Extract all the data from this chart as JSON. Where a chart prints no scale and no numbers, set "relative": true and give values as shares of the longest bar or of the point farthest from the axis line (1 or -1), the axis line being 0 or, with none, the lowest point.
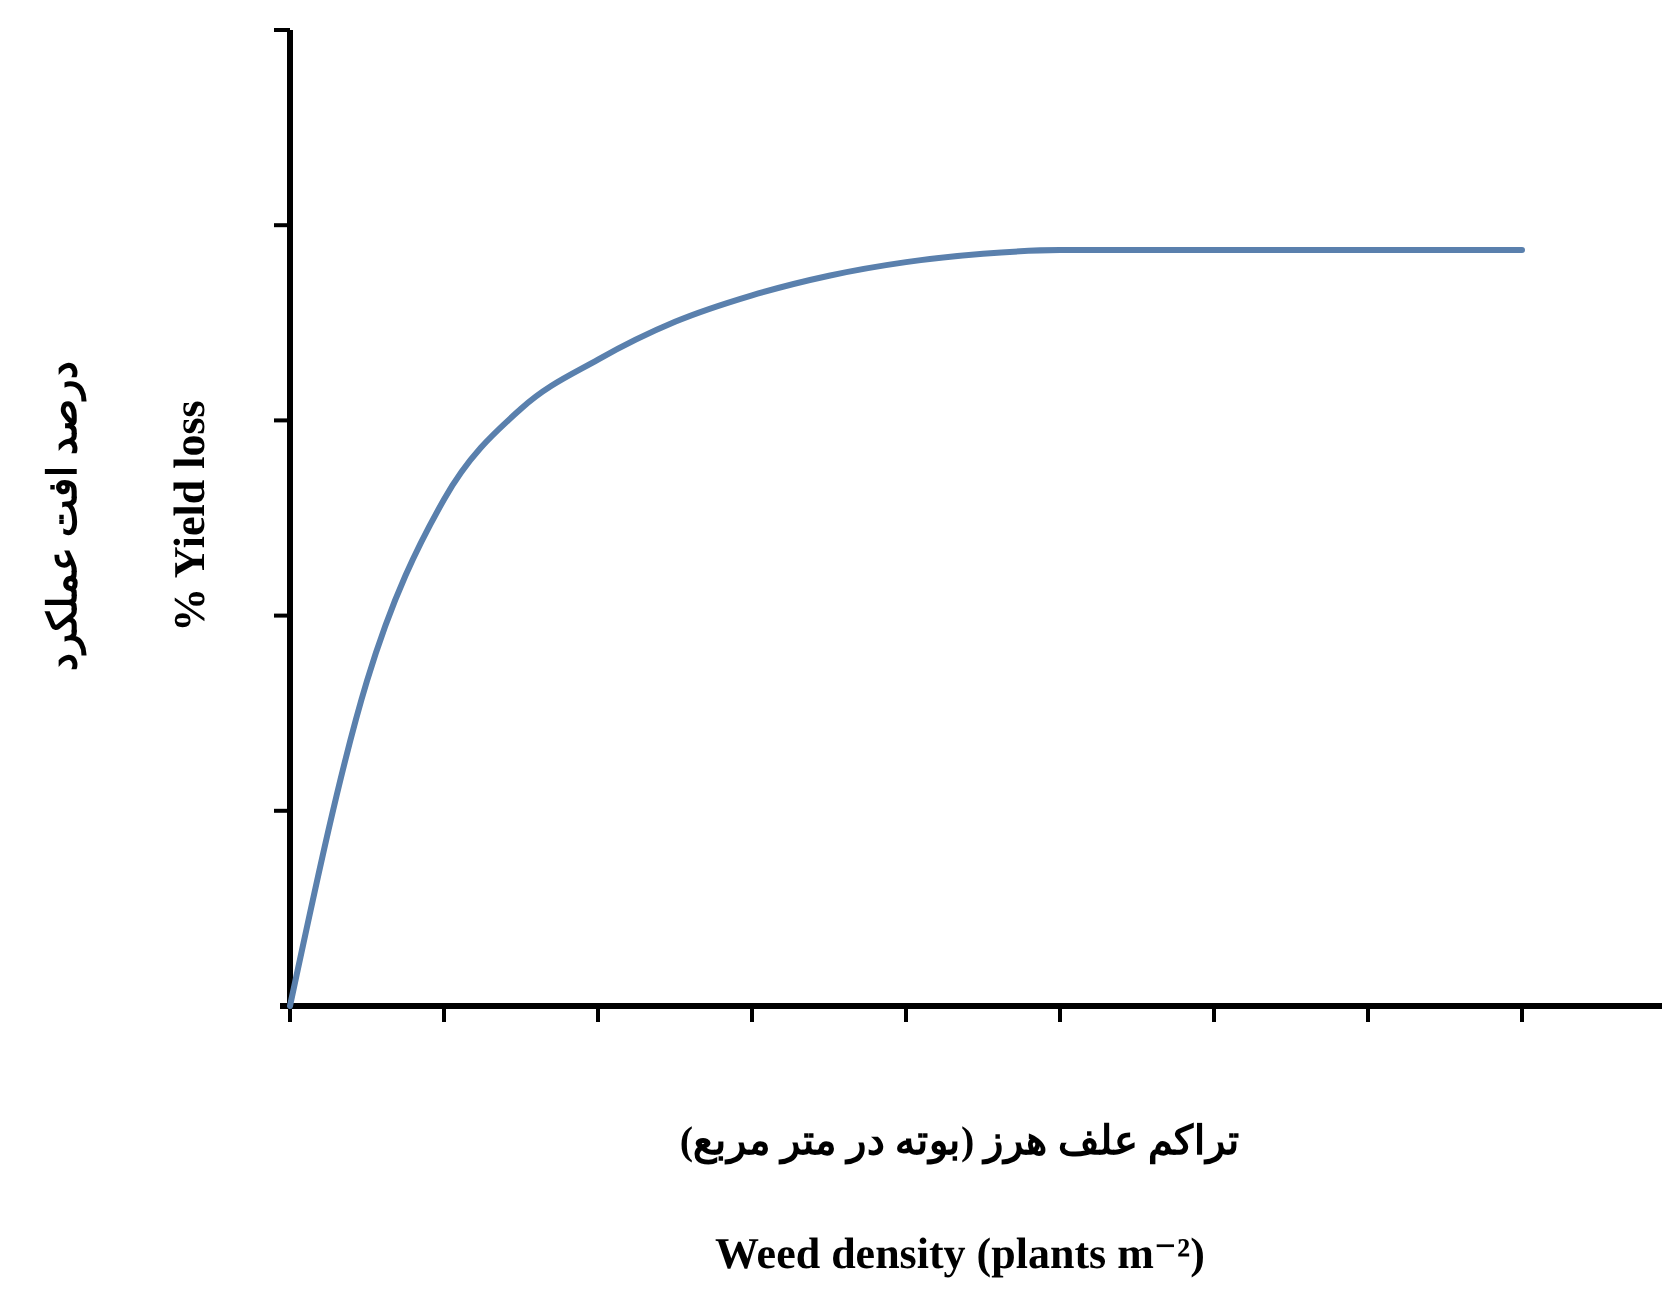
{
  "chart_data": {
    "type": "line",
    "relative": true,
    "xlabel": "تراکم علف هرز (بوته در متر مربع)",
    "ylabel": "% Yield loss",
    "annotations": [
      "Weed density (plants m⁻²)",
      "درصد افت عملکرد"
    ],
    "categories": [
      null,
      null,
      null,
      null,
      null,
      null,
      null,
      null,
      null,
      null,
      null,
      null,
      null,
      null,
      null,
      null,
      null
    ],
    "series": [
      {
        "color": "#5a80ad",
        "values": [
          0,
          0.43,
          0.67,
          0.79,
          0.855,
          0.905,
          0.94,
          0.966,
          0.984,
          0.995,
          1,
          1,
          1,
          1,
          1,
          1,
          1
        ]
      }
    ],
    "marker": "none",
    "line_style": "solid",
    "grid": false
  }
}
